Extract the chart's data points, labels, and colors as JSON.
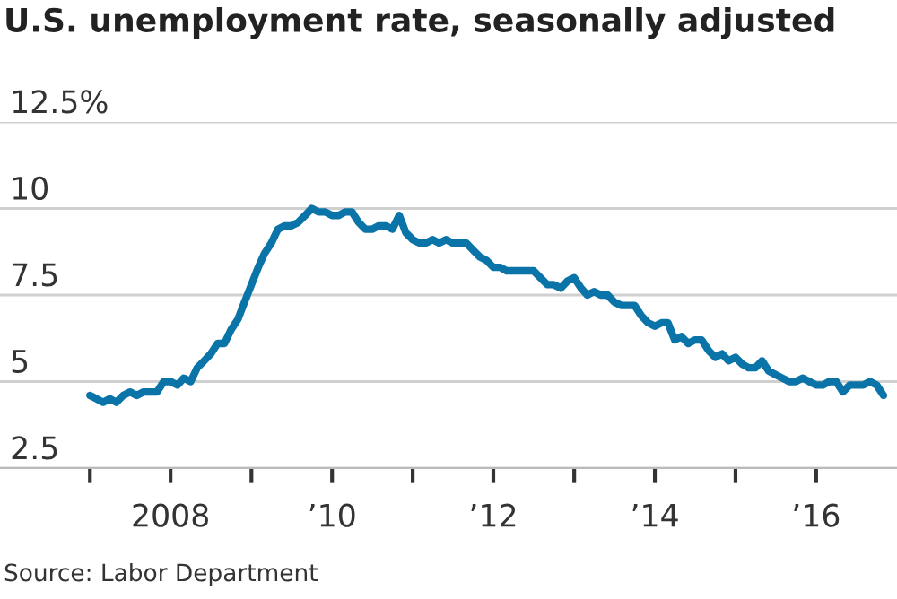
{
  "chart_data": {
    "type": "line",
    "title": "U.S. unemployment rate, seasonally adjusted",
    "annotations": [
      "Source: Labor Department"
    ],
    "x": [
      "2007-01",
      "2007-02",
      "2007-03",
      "2007-04",
      "2007-05",
      "2007-06",
      "2007-07",
      "2007-08",
      "2007-09",
      "2007-10",
      "2007-11",
      "2007-12",
      "2008-01",
      "2008-02",
      "2008-03",
      "2008-04",
      "2008-05",
      "2008-06",
      "2008-07",
      "2008-08",
      "2008-09",
      "2008-10",
      "2008-11",
      "2008-12",
      "2009-01",
      "2009-02",
      "2009-03",
      "2009-04",
      "2009-05",
      "2009-06",
      "2009-07",
      "2009-08",
      "2009-09",
      "2009-10",
      "2009-11",
      "2009-12",
      "2010-01",
      "2010-02",
      "2010-03",
      "2010-04",
      "2010-05",
      "2010-06",
      "2010-07",
      "2010-08",
      "2010-09",
      "2010-10",
      "2010-11",
      "2010-12",
      "2011-01",
      "2011-02",
      "2011-03",
      "2011-04",
      "2011-05",
      "2011-06",
      "2011-07",
      "2011-08",
      "2011-09",
      "2011-10",
      "2011-11",
      "2011-12",
      "2012-01",
      "2012-02",
      "2012-03",
      "2012-04",
      "2012-05",
      "2012-06",
      "2012-07",
      "2012-08",
      "2012-09",
      "2012-10",
      "2012-11",
      "2012-12",
      "2013-01",
      "2013-02",
      "2013-03",
      "2013-04",
      "2013-05",
      "2013-06",
      "2013-07",
      "2013-08",
      "2013-09",
      "2013-10",
      "2013-11",
      "2013-12",
      "2014-01",
      "2014-02",
      "2014-03",
      "2014-04",
      "2014-05",
      "2014-06",
      "2014-07",
      "2014-08",
      "2014-09",
      "2014-10",
      "2014-11",
      "2014-12",
      "2015-01",
      "2015-02",
      "2015-03",
      "2015-04",
      "2015-05",
      "2015-06",
      "2015-07",
      "2015-08",
      "2015-09",
      "2015-10",
      "2015-11",
      "2015-12",
      "2016-01",
      "2016-02",
      "2016-03",
      "2016-04",
      "2016-05",
      "2016-06",
      "2016-07",
      "2016-08",
      "2016-09",
      "2016-10",
      "2016-11"
    ],
    "series": [
      {
        "color": "#0a74a8",
        "values": [
          4.6,
          4.5,
          4.4,
          4.5,
          4.4,
          4.6,
          4.7,
          4.6,
          4.7,
          4.7,
          4.7,
          5.0,
          5.0,
          4.9,
          5.1,
          5.0,
          5.4,
          5.6,
          5.8,
          6.1,
          6.1,
          6.5,
          6.8,
          7.3,
          7.8,
          8.3,
          8.7,
          9.0,
          9.4,
          9.5,
          9.5,
          9.6,
          9.8,
          10.0,
          9.9,
          9.9,
          9.8,
          9.8,
          9.9,
          9.9,
          9.6,
          9.4,
          9.4,
          9.5,
          9.5,
          9.4,
          9.8,
          9.3,
          9.1,
          9.0,
          9.0,
          9.1,
          9.0,
          9.1,
          9.0,
          9.0,
          9.0,
          8.8,
          8.6,
          8.5,
          8.3,
          8.3,
          8.2,
          8.2,
          8.2,
          8.2,
          8.2,
          8.0,
          7.8,
          7.8,
          7.7,
          7.9,
          8.0,
          7.7,
          7.5,
          7.6,
          7.5,
          7.5,
          7.3,
          7.2,
          7.2,
          7.2,
          6.9,
          6.7,
          6.6,
          6.7,
          6.7,
          6.2,
          6.3,
          6.1,
          6.2,
          6.2,
          5.9,
          5.7,
          5.8,
          5.6,
          5.7,
          5.5,
          5.4,
          5.4,
          5.6,
          5.3,
          5.2,
          5.1,
          5.0,
          5.0,
          5.1,
          5.0,
          4.9,
          4.9,
          5.0,
          5.0,
          4.7,
          4.9,
          4.9,
          4.9,
          5.0,
          4.9,
          4.6
        ]
      }
    ],
    "xlim": [
      "2005-11-20",
      "2017-01-01"
    ],
    "xticks": [
      {
        "value": "2007-01-01",
        "label": null
      },
      {
        "value": "2008-01-01",
        "label": "2008"
      },
      {
        "value": "2009-01-01",
        "label": null
      },
      {
        "value": "2010-01-01",
        "label": "’10"
      },
      {
        "value": "2011-01-01",
        "label": null
      },
      {
        "value": "2012-01-01",
        "label": "’12"
      },
      {
        "value": "2013-01-01",
        "label": null
      },
      {
        "value": "2014-01-01",
        "label": "’14"
      },
      {
        "value": "2015-01-01",
        "label": null
      },
      {
        "value": "2016-01-01",
        "label": "’16"
      }
    ],
    "ylim": [
      2.5,
      12.5
    ],
    "yticks": [
      2.5,
      5,
      7.5,
      10,
      {
        "value": 12.5,
        "label": "12.5%"
      }
    ],
    "grid": "y",
    "line_style": "solid",
    "marker": "none"
  }
}
